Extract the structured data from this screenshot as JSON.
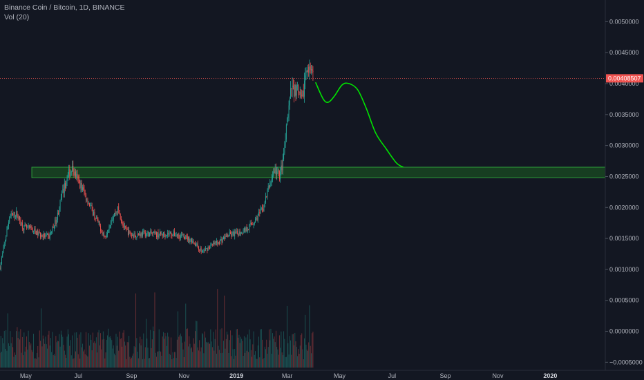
{
  "legend": {
    "title": "Binance Coin / Bitcoin, 1D, BINANCE",
    "indicator": "Vol (20)"
  },
  "colors": {
    "background": "#131722",
    "up": "#26a69a",
    "down": "#ef5350",
    "zone": "#1b5e20",
    "projection": "#00e600",
    "price_line": "#ef5350",
    "axis_text": "#b2b5be"
  },
  "chart_data": {
    "type": "candlestick",
    "title": "Binance Coin / Bitcoin, 1D, BINANCE",
    "y_axis": {
      "ticks": [
        -0.0005,
        0.0,
        0.0005,
        0.001,
        0.0015,
        0.002,
        0.0025,
        0.003,
        0.0035,
        0.004,
        0.0045,
        0.005
      ],
      "tick_labels": [
        "−0.0005000",
        "0.0000000",
        "0.0005000",
        "0.0010000",
        "0.0015000",
        "0.0020000",
        "0.0025000",
        "0.0030000",
        "0.0035000",
        "0.0040000",
        "0.0045000",
        "0.0050000"
      ],
      "range": [
        -0.00063,
        0.00535
      ]
    },
    "x_axis": {
      "labels": [
        "May",
        "Jul",
        "Sep",
        "Nov",
        "2019",
        "Mar",
        "May",
        "Jul",
        "Sep",
        "Nov",
        "2020"
      ],
      "bold_labels": [
        "2019",
        "2020"
      ],
      "label_dates": [
        "2018-05-01",
        "2018-07-01",
        "2018-09-01",
        "2018-11-01",
        "2019-01-01",
        "2019-03-01",
        "2019-05-01",
        "2019-07-01",
        "2019-09-01",
        "2019-11-01",
        "2020-01-01"
      ],
      "range": [
        "2018-04-01",
        "2020-03-05"
      ]
    },
    "last_price": {
      "value": 0.00408507,
      "label": "0.00408507"
    },
    "price_path": [
      [
        "2018-04-01",
        0.00103
      ],
      [
        "2018-04-08",
        0.00155
      ],
      [
        "2018-04-12",
        0.00185
      ],
      [
        "2018-04-20",
        0.0019
      ],
      [
        "2018-04-28",
        0.00168
      ],
      [
        "2018-05-08",
        0.00165
      ],
      [
        "2018-05-18",
        0.00155
      ],
      [
        "2018-05-28",
        0.00152
      ],
      [
        "2018-06-06",
        0.00182
      ],
      [
        "2018-06-12",
        0.0022
      ],
      [
        "2018-06-20",
        0.00255
      ],
      [
        "2018-06-24",
        0.00262
      ],
      [
        "2018-07-04",
        0.00235
      ],
      [
        "2018-07-14",
        0.00205
      ],
      [
        "2018-07-24",
        0.00175
      ],
      [
        "2018-08-01",
        0.00152
      ],
      [
        "2018-08-08",
        0.0018
      ],
      [
        "2018-08-16",
        0.00198
      ],
      [
        "2018-08-24",
        0.00165
      ],
      [
        "2018-09-01",
        0.00155
      ],
      [
        "2018-09-16",
        0.00158
      ],
      [
        "2018-10-01",
        0.00156
      ],
      [
        "2018-10-16",
        0.00158
      ],
      [
        "2018-11-01",
        0.00153
      ],
      [
        "2018-11-12",
        0.00145
      ],
      [
        "2018-11-22",
        0.00128
      ],
      [
        "2018-12-02",
        0.00138
      ],
      [
        "2018-12-12",
        0.00145
      ],
      [
        "2018-12-22",
        0.00155
      ],
      [
        "2019-01-02",
        0.00158
      ],
      [
        "2019-01-12",
        0.00165
      ],
      [
        "2019-01-22",
        0.00178
      ],
      [
        "2019-02-01",
        0.00198
      ],
      [
        "2019-02-08",
        0.00235
      ],
      [
        "2019-02-14",
        0.0026
      ],
      [
        "2019-02-20",
        0.00252
      ],
      [
        "2019-02-24",
        0.00272
      ],
      [
        "2019-03-02",
        0.0035
      ],
      [
        "2019-03-06",
        0.00392
      ],
      [
        "2019-03-12",
        0.0039
      ],
      [
        "2019-03-18",
        0.0037
      ],
      [
        "2019-03-24",
        0.00432
      ],
      [
        "2019-03-28",
        0.00415
      ],
      [
        "2019-03-31",
        0.00408
      ]
    ],
    "projection_path": [
      [
        "2019-04-03",
        0.00402
      ],
      [
        "2019-04-12",
        0.00375
      ],
      [
        "2019-04-18",
        0.0037
      ],
      [
        "2019-04-25",
        0.0038
      ],
      [
        "2019-05-04",
        0.00398
      ],
      [
        "2019-05-12",
        0.004
      ],
      [
        "2019-05-22",
        0.0039
      ],
      [
        "2019-06-01",
        0.0036
      ],
      [
        "2019-06-12",
        0.0032
      ],
      [
        "2019-06-24",
        0.00295
      ],
      [
        "2019-07-06",
        0.00272
      ],
      [
        "2019-07-14",
        0.00265
      ]
    ],
    "support_zone": {
      "start": "2018-05-08",
      "low": 0.00248,
      "high": 0.00265
    },
    "volume": {
      "indicator": "Vol (20)",
      "start": "2018-04-01",
      "end": "2019-03-31"
    }
  }
}
